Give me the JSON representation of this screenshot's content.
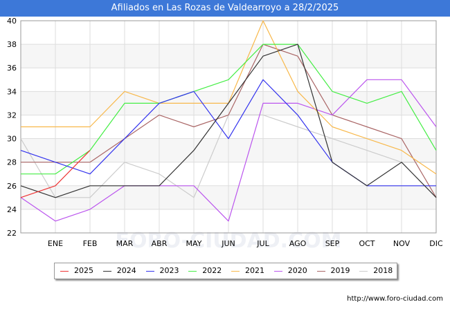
{
  "chart_data": {
    "type": "line",
    "title": "Afiliados en Las Rozas de Valdearroyo a 28/2/2025",
    "categories": [
      "",
      "ENE",
      "FEB",
      "MAR",
      "ABR",
      "MAY",
      "JUN",
      "JUL",
      "AGO",
      "SEP",
      "OCT",
      "NOV",
      "DIC"
    ],
    "ylim": [
      22,
      40
    ],
    "yticks": [
      22,
      24,
      26,
      28,
      30,
      32,
      34,
      36,
      38,
      40
    ],
    "grid": true,
    "legend_position": "bottom",
    "watermark": "FORO-CIUDAD.COM",
    "series": [
      {
        "name": "2025",
        "color": "#ee3333",
        "values": [
          25,
          26,
          29,
          null,
          null,
          null,
          null,
          null,
          null,
          null,
          null,
          null,
          null
        ]
      },
      {
        "name": "2024",
        "color": "#333333",
        "values": [
          26,
          25,
          26,
          26,
          26,
          29,
          33,
          37,
          38,
          28,
          26,
          28,
          25
        ]
      },
      {
        "name": "2023",
        "color": "#3333ee",
        "values": [
          29,
          28,
          27,
          30,
          33,
          34,
          30,
          35,
          32,
          28,
          26,
          26,
          26
        ]
      },
      {
        "name": "2022",
        "color": "#44ee44",
        "values": [
          27,
          27,
          29,
          33,
          33,
          34,
          35,
          38,
          38,
          34,
          33,
          34,
          29
        ]
      },
      {
        "name": "2021",
        "color": "#f8b84a",
        "values": [
          31,
          31,
          31,
          34,
          33,
          33,
          33,
          40,
          34,
          31,
          30,
          29,
          27
        ]
      },
      {
        "name": "2020",
        "color": "#bb55ee",
        "values": [
          25,
          23,
          24,
          26,
          26,
          26,
          23,
          33,
          33,
          32,
          35,
          35,
          31
        ]
      },
      {
        "name": "2019",
        "color": "#aa6666",
        "values": [
          28,
          28,
          28,
          30,
          32,
          31,
          32,
          38,
          37,
          32,
          31,
          30,
          25
        ]
      },
      {
        "name": "2018",
        "color": "#cccccc",
        "values": [
          30,
          25,
          25,
          28,
          27,
          25,
          32,
          32,
          31,
          30,
          29,
          28,
          28
        ]
      }
    ]
  },
  "footer": {
    "url": "http://www.foro-ciudad.com"
  }
}
